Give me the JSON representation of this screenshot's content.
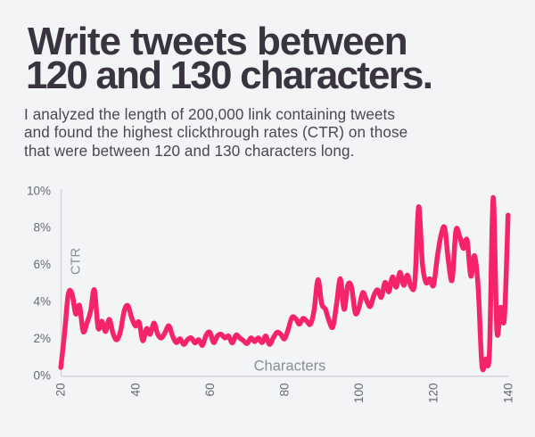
{
  "heading": {
    "title_line1": "Write tweets between",
    "title_line2": "120 and 130 characters.",
    "subtitle_line1": "I analyzed the length of 200,000 link containing tweets",
    "subtitle_line2": "and found the highest clickthrough rates (CTR) on those",
    "subtitle_line3": "that were between 120 and 130 characters long."
  },
  "chart_data": {
    "type": "line",
    "title": "Write tweets between 120 and 130 characters.",
    "xlabel": "Characters",
    "ylabel": "CTR",
    "xlim": [
      20,
      140
    ],
    "ylim": [
      0,
      10
    ],
    "x_ticks": [
      20,
      40,
      60,
      80,
      100,
      120,
      140
    ],
    "y_ticks": [
      "0%",
      "2%",
      "4%",
      "6%",
      "8%",
      "10%"
    ],
    "y_tick_values": [
      0,
      2,
      4,
      6,
      8,
      10
    ],
    "grid": false,
    "legend": false,
    "line_color": "#f5246a",
    "x": [
      20,
      21,
      22,
      23,
      24,
      25,
      26,
      27,
      28,
      29,
      30,
      31,
      32,
      33,
      34,
      35,
      36,
      37,
      38,
      39,
      40,
      41,
      42,
      43,
      44,
      45,
      46,
      47,
      48,
      49,
      50,
      51,
      52,
      53,
      54,
      55,
      56,
      57,
      58,
      59,
      60,
      61,
      62,
      63,
      64,
      65,
      66,
      67,
      68,
      69,
      70,
      71,
      72,
      73,
      74,
      75,
      76,
      77,
      78,
      79,
      80,
      81,
      82,
      83,
      84,
      85,
      86,
      87,
      88,
      89,
      90,
      91,
      92,
      93,
      94,
      95,
      96,
      97,
      98,
      99,
      100,
      101,
      102,
      103,
      104,
      105,
      106,
      107,
      108,
      109,
      110,
      111,
      112,
      113,
      114,
      115,
      116,
      117,
      118,
      119,
      120,
      121,
      122,
      123,
      124,
      125,
      126,
      127,
      128,
      129,
      130,
      131,
      132,
      133,
      134,
      135,
      136,
      137,
      138,
      139,
      140
    ],
    "ctr_percent": [
      0.45,
      2.3,
      4.4,
      4.45,
      3.35,
      3.8,
      2.4,
      2.85,
      3.5,
      4.65,
      2.6,
      2.95,
      2.4,
      3.05,
      2.3,
      1.95,
      2.4,
      3.5,
      3.8,
      3.15,
      2.7,
      2.9,
      1.9,
      2.55,
      2.25,
      2.85,
      2.25,
      2.05,
      2.35,
      2.7,
      2.15,
      1.8,
      2.0,
      1.7,
      1.95,
      2.05,
      1.78,
      1.95,
      1.65,
      2.2,
      2.35,
      1.8,
      2.15,
      2.25,
      2.05,
      2.15,
      1.78,
      2.2,
      2.05,
      1.9,
      1.75,
      2.05,
      1.85,
      2.05,
      1.8,
      2.15,
      1.7,
      2.05,
      2.35,
      2.25,
      2.0,
      2.5,
      3.15,
      3.1,
      2.8,
      3.1,
      2.95,
      2.8,
      3.6,
      5.2,
      3.9,
      3.6,
      2.95,
      2.65,
      3.9,
      5.25,
      3.6,
      4.9,
      4.8,
      3.4,
      3.7,
      4.5,
      4.1,
      3.75,
      4.35,
      4.65,
      4.25,
      5.05,
      4.55,
      5.35,
      4.8,
      5.6,
      4.9,
      5.45,
      4.8,
      5.1,
      9.15,
      6.1,
      5.05,
      5.25,
      4.9,
      6.4,
      7.6,
      8.0,
      6.2,
      5.2,
      7.85,
      7.55,
      6.9,
      7.35,
      5.4,
      6.5,
      4.7,
      0.55,
      0.9,
      1.25,
      9.65,
      2.45,
      3.7,
      3.1,
      8.7
    ]
  },
  "style": {
    "background": "#f3f4f6",
    "title_color": "#3a3441",
    "subtitle_color": "#4c474e",
    "tick_color": "#66696f",
    "axis_title_color": "#8a8d92",
    "axis_line_color": "#d6d7da",
    "line_color": "#f5246a"
  }
}
